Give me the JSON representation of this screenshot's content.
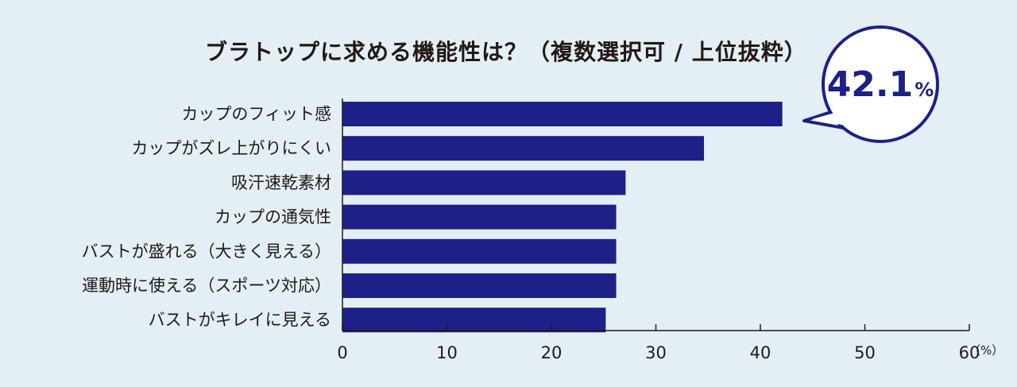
{
  "chart_data": {
    "type": "bar",
    "orientation": "horizontal",
    "title": "ブラトップに求める機能性は？（複数選択可 / 上位抜粋）",
    "categories": [
      "カップのフィット感",
      "カップがズレ上がりにくい",
      "吸汗速乾素材",
      "カップの通気性",
      "バストが盛れる（大きく見える）",
      "運動時に使える（スポーツ対応）",
      "バストがキレイに見える"
    ],
    "values": [
      42.1,
      34.6,
      27.1,
      26.2,
      26.2,
      26.2,
      25.2
    ],
    "xlim": [
      0,
      60
    ],
    "xticks": [
      "0",
      "10",
      "20",
      "30",
      "40",
      "50",
      "60"
    ],
    "unit": "（%）",
    "grid": false,
    "callout": {
      "number": "42.1",
      "suffix": "%"
    },
    "colors": {
      "bar": "#1d2087",
      "background": "#e3eff4",
      "axis": "#231815",
      "callout_fill": "#ffffff"
    }
  }
}
